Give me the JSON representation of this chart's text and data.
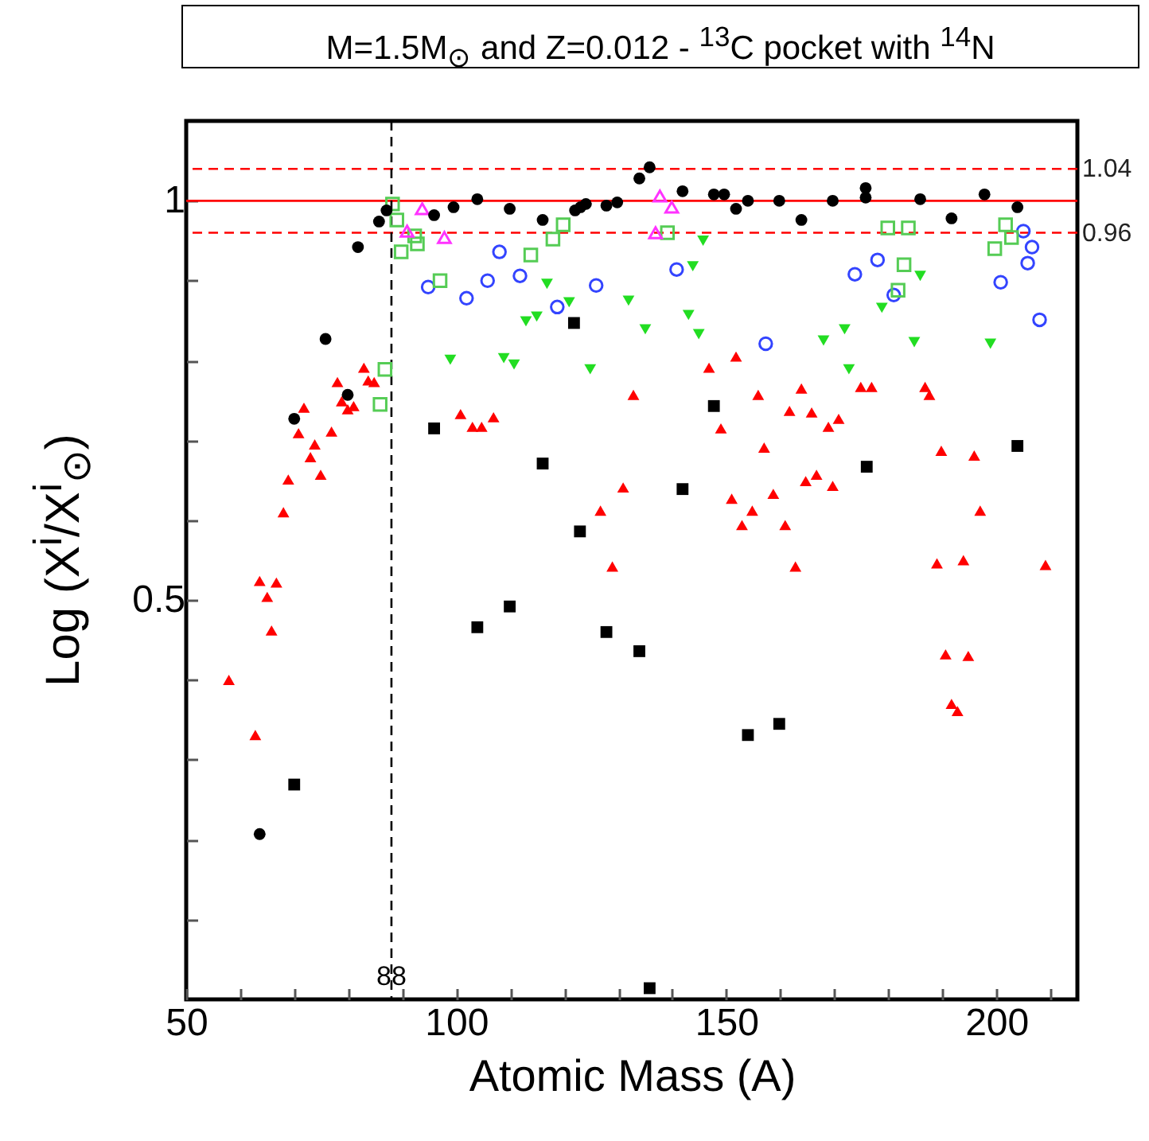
{
  "chart_data": {
    "type": "scatter",
    "title": "M=1.5M$_{⊙}$ and  Z=0.012 - $^{13}$C pocket with $^{14}$N",
    "xlabel": "Atomic Mass (A)",
    "ylabel": "Log (X$^{i}$/X$^{i}$$_{⊙}$)",
    "xlim": [
      50,
      215
    ],
    "xticks": [
      50,
      {
        "value": 60,
        "label": null
      },
      {
        "value": 70,
        "label": null
      },
      {
        "value": 80,
        "label": null
      },
      {
        "value": 90,
        "label": null
      },
      100,
      {
        "value": 110,
        "label": null
      },
      {
        "value": 120,
        "label": null
      },
      {
        "value": 130,
        "label": null
      },
      {
        "value": 140,
        "label": null
      },
      150,
      {
        "value": 160,
        "label": null
      },
      {
        "value": 170,
        "label": null
      },
      {
        "value": 180,
        "label": null
      },
      {
        "value": 190,
        "label": null
      },
      200,
      {
        "value": 210,
        "label": null
      }
    ],
    "ylim": [
      0,
      1.1
    ],
    "yticks": [
      {
        "value": 0.1,
        "label": null
      },
      {
        "value": 0.2,
        "label": null
      },
      {
        "value": 0.3,
        "label": null
      },
      {
        "value": 0.4,
        "label": null
      },
      0.5,
      {
        "value": 0.6,
        "label": null
      },
      {
        "value": 0.7,
        "label": null
      },
      {
        "value": 0.8,
        "label": null
      },
      {
        "value": 0.9,
        "label": null
      },
      1
    ],
    "ref_lines": [
      {
        "axis": "y",
        "value": 1,
        "color": "#ff0000",
        "line_style": "solid"
      },
      {
        "axis": "y",
        "value": 1.04,
        "label": "1.04",
        "color": "#ff0000",
        "line_style": "dashed"
      },
      {
        "axis": "y",
        "value": 0.96,
        "label": "0.96",
        "color": "#ff0000",
        "line_style": "dashed"
      },
      {
        "axis": "x",
        "value": 88,
        "label": "88",
        "color": "#000000",
        "line_style": "dashed"
      }
    ],
    "series": [
      {
        "color": "#ff0000",
        "marker": "triangle",
        "x": [
          57.9,
          62.8,
          63.6,
          65,
          65.8,
          66.7,
          68,
          68.9,
          70.8,
          71.8,
          73,
          73.8,
          74.9,
          76.9,
          78,
          78.8,
          79.9,
          81,
          82.9,
          83.7,
          84.8,
          100.8,
          103,
          104.7,
          106.9,
          126.7,
          128.9,
          130.9,
          132.8,
          146.8,
          149,
          151,
          151.8,
          152.9,
          154.8,
          155.9,
          157,
          158.7,
          160.9,
          161.7,
          162.8,
          163.9,
          164.7,
          165.8,
          166.7,
          168.9,
          169.7,
          170.8,
          174.9,
          176.9,
          186.8,
          187.6,
          189,
          189.8,
          190.6,
          191.7,
          192.8,
          193.9,
          194.8,
          195.9,
          197,
          209.1
        ],
        "values": [
          0.4,
          0.331,
          0.524,
          0.504,
          0.462,
          0.522,
          0.61,
          0.651,
          0.709,
          0.741,
          0.679,
          0.695,
          0.657,
          0.711,
          0.773,
          0.749,
          0.739,
          0.743,
          0.791,
          0.775,
          0.773,
          0.733,
          0.717,
          0.717,
          0.729,
          0.612,
          0.542,
          0.641,
          0.757,
          0.791,
          0.715,
          0.627,
          0.805,
          0.594,
          0.612,
          0.757,
          0.691,
          0.633,
          0.594,
          0.737,
          0.542,
          0.765,
          0.649,
          0.735,
          0.657,
          0.717,
          0.643,
          0.727,
          0.767,
          0.767,
          0.767,
          0.757,
          0.546,
          0.687,
          0.432,
          0.37,
          0.361,
          0.55,
          0.43,
          0.681,
          0.612,
          0.544
        ]
      },
      {
        "color": "#22dd22",
        "marker": "triangle-down",
        "x": [
          98.9,
          108.8,
          110.7,
          112.9,
          114.9,
          116.8,
          120.9,
          124.8,
          131.9,
          135,
          143,
          143.8,
          144.9,
          145.7,
          168,
          171.9,
          172.7,
          178.8,
          184.8,
          185.9,
          198.9
        ],
        "values": [
          0.801,
          0.803,
          0.795,
          0.849,
          0.855,
          0.896,
          0.873,
          0.789,
          0.875,
          0.839,
          0.857,
          0.918,
          0.833,
          0.95,
          0.825,
          0.839,
          0.789,
          0.866,
          0.823,
          0.906,
          0.821
        ]
      },
      {
        "color": "#3344ff",
        "marker": "circle-open",
        "x": [
          94.8,
          101.9,
          105.8,
          108,
          111.8,
          118.7,
          125.9,
          140.8,
          157.3,
          173.8,
          178,
          181,
          200.8,
          205,
          205.8,
          206.6,
          208
        ],
        "values": [
          0.892,
          0.878,
          0.9,
          0.936,
          0.906,
          0.867,
          0.894,
          0.914,
          0.821,
          0.908,
          0.926,
          0.882,
          0.898,
          0.962,
          0.922,
          0.942,
          0.851
        ]
      },
      {
        "color": "#55cc55",
        "marker": "square-open",
        "x": [
          85.9,
          86.8,
          88.2,
          89,
          89.8,
          92.3,
          92.8,
          97,
          113.8,
          117.9,
          119.8,
          139.1,
          179.9,
          181.8,
          182.9,
          183.7,
          199.7,
          201.7,
          202.8
        ],
        "values": [
          0.745,
          0.789,
          0.996,
          0.976,
          0.936,
          0.956,
          0.946,
          0.9,
          0.932,
          0.952,
          0.97,
          0.96,
          0.966,
          0.888,
          0.92,
          0.966,
          0.94,
          0.97,
          0.954
        ]
      },
      {
        "color": "#ff33ff",
        "marker": "triangle-open",
        "x": [
          90.9,
          93.7,
          97.8,
          136.9,
          137.7,
          139.9
        ],
        "values": [
          0.962,
          0.99,
          0.954,
          0.96,
          1.006,
          0.992
        ]
      },
      {
        "color": "#000000",
        "marker": "square",
        "x": [
          70,
          95.9,
          103.9,
          109.9,
          116,
          121.8,
          122.9,
          127.8,
          133.9,
          135.8,
          141.9,
          147.7,
          154,
          159.8,
          176,
          203.9
        ],
        "values": [
          0.269,
          0.715,
          0.466,
          0.492,
          0.671,
          0.847,
          0.586,
          0.46,
          0.436,
          0.014,
          0.639,
          0.743,
          0.331,
          0.345,
          0.667,
          0.693
        ]
      },
      {
        "color": "#000000",
        "marker": "circle",
        "x": [
          63.6,
          70,
          75.8,
          79.9,
          81.8,
          85.7,
          87.1,
          95.9,
          99.5,
          103.9,
          109.9,
          116,
          122,
          123,
          124,
          127.8,
          129.8,
          133.9,
          135.8,
          141.9,
          147.7,
          149.6,
          151.8,
          154,
          159.8,
          163.9,
          169.7,
          175.8,
          175.8,
          185.9,
          191.7,
          197.8,
          203.9
        ],
        "values": [
          0.207,
          0.727,
          0.827,
          0.757,
          0.942,
          0.974,
          0.988,
          0.982,
          0.992,
          1.002,
          0.99,
          0.976,
          0.988,
          0.992,
          0.996,
          0.994,
          0.998,
          1.028,
          1.042,
          1.012,
          1.008,
          1.008,
          0.99,
          1.0,
          1.0,
          0.976,
          1.0,
          1.016,
          1.004,
          1.002,
          0.978,
          1.008,
          0.992
        ]
      }
    ]
  }
}
